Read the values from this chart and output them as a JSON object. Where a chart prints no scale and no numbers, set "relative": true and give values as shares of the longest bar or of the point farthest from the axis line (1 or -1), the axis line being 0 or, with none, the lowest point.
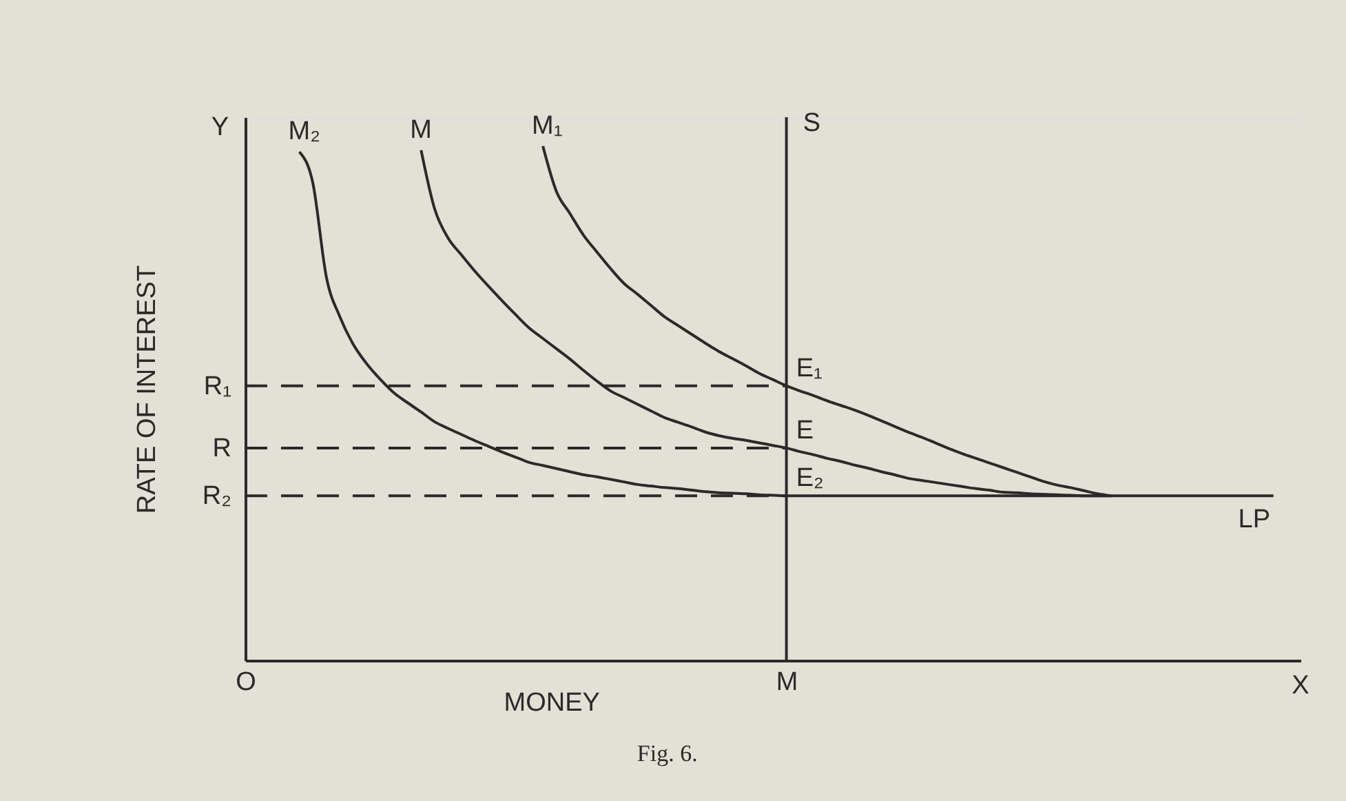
{
  "chart_data": {
    "type": "line",
    "relative": true,
    "xlabel": "MONEY",
    "ylabel": "RATE OF INTEREST",
    "line_style": "solid",
    "categories": [
      "O",
      null,
      null,
      null,
      null,
      null,
      null,
      null,
      null,
      null,
      null,
      null,
      null,
      null,
      null,
      null,
      null,
      null,
      null,
      null,
      null,
      null,
      null,
      null,
      null,
      null,
      null,
      null,
      null,
      null,
      null,
      null,
      null,
      null,
      null,
      null,
      null,
      null,
      null,
      null,
      "M",
      null,
      null,
      null,
      null,
      null,
      null,
      null,
      null,
      null,
      null,
      null,
      null,
      null,
      null,
      null,
      null,
      null,
      null,
      null,
      null,
      null,
      null,
      null,
      null,
      null,
      null,
      null,
      null,
      null,
      null,
      null,
      null,
      null,
      null,
      null,
      null,
      null,
      null
    ],
    "series": [
      {
        "name": "M₂",
        "color": "#2a2a2a",
        "values": [
          null,
          null,
          null,
          null,
          0.989,
          0.928,
          0.745,
          0.668,
          0.614,
          0.576,
          0.546,
          0.52,
          0.501,
          0.483,
          0.464,
          0.451,
          0.439,
          0.427,
          0.416,
          0.405,
          0.395,
          0.385,
          0.379,
          0.373,
          0.367,
          0.361,
          0.357,
          0.352,
          0.347,
          0.342,
          0.339,
          0.336,
          0.334,
          0.331,
          0.328,
          0.326,
          0.325,
          0.324,
          0.322,
          0.321,
          0.32,
          0.32,
          0.32,
          0.32,
          0.32,
          0.32,
          0.32,
          0.32,
          0.32,
          0.32,
          0.32,
          0.32,
          0.32,
          0.32,
          0.32,
          0.32,
          0.32,
          0.32,
          0.32,
          0.32,
          0.32,
          0.32,
          0.32,
          0.32,
          0.32,
          0.32,
          0.32,
          0.32,
          0.32,
          0.32,
          0.32,
          0.32,
          0.32,
          0.32,
          0.32,
          0.32,
          0.32,
          null,
          null
        ]
      },
      {
        "name": "M",
        "color": "#2a2a2a",
        "values": [
          null,
          null,
          null,
          null,
          null,
          null,
          null,
          null,
          null,
          null,
          null,
          null,
          null,
          0.992,
          0.878,
          0.821,
          0.788,
          0.756,
          0.727,
          0.699,
          0.672,
          0.646,
          0.626,
          0.606,
          0.586,
          0.564,
          0.543,
          0.524,
          0.511,
          0.498,
          0.485,
          0.472,
          0.463,
          0.454,
          0.444,
          0.437,
          0.432,
          0.428,
          0.423,
          0.418,
          0.413,
          0.406,
          0.4,
          0.393,
          0.387,
          0.38,
          0.374,
          0.367,
          0.361,
          0.354,
          0.35,
          0.346,
          0.342,
          0.338,
          0.334,
          0.331,
          0.327,
          0.326,
          0.324,
          0.323,
          0.322,
          0.321,
          0.32,
          0.32,
          0.32,
          null,
          null,
          null,
          null,
          null,
          null,
          null,
          null,
          null,
          null,
          null,
          null,
          null,
          null
        ]
      },
      {
        "name": "M₁",
        "color": "#2a2a2a",
        "values": [
          null,
          null,
          null,
          null,
          null,
          null,
          null,
          null,
          null,
          null,
          null,
          null,
          null,
          null,
          null,
          null,
          null,
          null,
          null,
          null,
          null,
          null,
          1.0,
          0.912,
          0.869,
          0.827,
          0.794,
          0.762,
          0.733,
          0.712,
          0.69,
          0.668,
          0.651,
          0.634,
          0.617,
          0.601,
          0.587,
          0.573,
          0.558,
          0.546,
          0.534,
          0.524,
          0.515,
          0.505,
          0.496,
          0.487,
          0.477,
          0.466,
          0.455,
          0.444,
          0.434,
          0.423,
          0.412,
          0.402,
          0.393,
          0.384,
          0.375,
          0.366,
          0.357,
          0.348,
          0.341,
          0.336,
          0.33,
          0.324,
          0.32,
          null,
          null,
          null,
          null,
          null,
          null,
          null,
          null,
          null,
          null,
          null,
          null,
          null,
          null
        ]
      },
      {
        "color": "#2a2a2a",
        "line_style": "dashed",
        "values": [
          0.534,
          0.534,
          0.534,
          0.534,
          0.534,
          0.534,
          0.534,
          0.534,
          0.534,
          0.534,
          0.534,
          0.534,
          0.534,
          0.534,
          0.534,
          0.534,
          0.534,
          0.534,
          0.534,
          0.534,
          0.534,
          0.534,
          0.534,
          0.534,
          0.534,
          0.534,
          0.534,
          0.534,
          0.534,
          0.534,
          0.534,
          0.534,
          0.534,
          0.534,
          0.534,
          0.534,
          0.534,
          0.534,
          0.534,
          0.534,
          0.534,
          null,
          null,
          null,
          null,
          null,
          null,
          null,
          null,
          null,
          null,
          null,
          null,
          null,
          null,
          null,
          null,
          null,
          null,
          null,
          null,
          null,
          null,
          null,
          null,
          null,
          null,
          null,
          null,
          null,
          null,
          null,
          null,
          null,
          null,
          null,
          null,
          null,
          null
        ]
      },
      {
        "color": "#2a2a2a",
        "line_style": "dashed",
        "values": [
          0.413,
          0.413,
          0.413,
          0.413,
          0.413,
          0.413,
          0.413,
          0.413,
          0.413,
          0.413,
          0.413,
          0.413,
          0.413,
          0.413,
          0.413,
          0.413,
          0.413,
          0.413,
          0.413,
          0.413,
          0.413,
          0.413,
          0.413,
          0.413,
          0.413,
          0.413,
          0.413,
          0.413,
          0.413,
          0.413,
          0.413,
          0.413,
          0.413,
          0.413,
          0.413,
          0.413,
          0.413,
          0.413,
          0.413,
          0.413,
          0.413,
          null,
          null,
          null,
          null,
          null,
          null,
          null,
          null,
          null,
          null,
          null,
          null,
          null,
          null,
          null,
          null,
          null,
          null,
          null,
          null,
          null,
          null,
          null,
          null,
          null,
          null,
          null,
          null,
          null,
          null,
          null,
          null,
          null,
          null,
          null,
          null,
          null,
          null
        ]
      },
      {
        "color": "#2a2a2a",
        "line_style": "dashed",
        "values": [
          0.32,
          0.32,
          0.32,
          0.32,
          0.32,
          0.32,
          0.32,
          0.32,
          0.32,
          0.32,
          0.32,
          0.32,
          0.32,
          0.32,
          0.32,
          0.32,
          0.32,
          0.32,
          0.32,
          0.32,
          0.32,
          0.32,
          0.32,
          0.32,
          0.32,
          0.32,
          0.32,
          0.32,
          0.32,
          0.32,
          0.32,
          0.32,
          0.32,
          0.32,
          0.32,
          0.32,
          0.32,
          0.32,
          0.32,
          0.32,
          0.32,
          null,
          null,
          null,
          null,
          null,
          null,
          null,
          null,
          null,
          null,
          null,
          null,
          null,
          null,
          null,
          null,
          null,
          null,
          null,
          null,
          null,
          null,
          null,
          null,
          null,
          null,
          null,
          null,
          null,
          null,
          null,
          null,
          null,
          null,
          null,
          null,
          null,
          null
        ]
      }
    ],
    "ref_lines": [
      {
        "axis": "x",
        "value": "M",
        "label": "S",
        "color": "#2a2a2a"
      }
    ],
    "annotations": [
      {
        "text": "R₁",
        "x": "O",
        "y": 0.534
      },
      {
        "text": "R",
        "x": "O",
        "y": 0.413
      },
      {
        "text": "R₂",
        "x": "O",
        "y": 0.32
      },
      {
        "text": "E₁",
        "x": "M",
        "y": 0.534
      },
      {
        "text": "E",
        "x": "M",
        "y": 0.413
      },
      {
        "text": "E₂",
        "x": "M",
        "y": 0.32
      },
      {
        "text": "LP",
        "y": 0.32
      },
      "Y",
      "X",
      "Fig. 6."
    ]
  }
}
